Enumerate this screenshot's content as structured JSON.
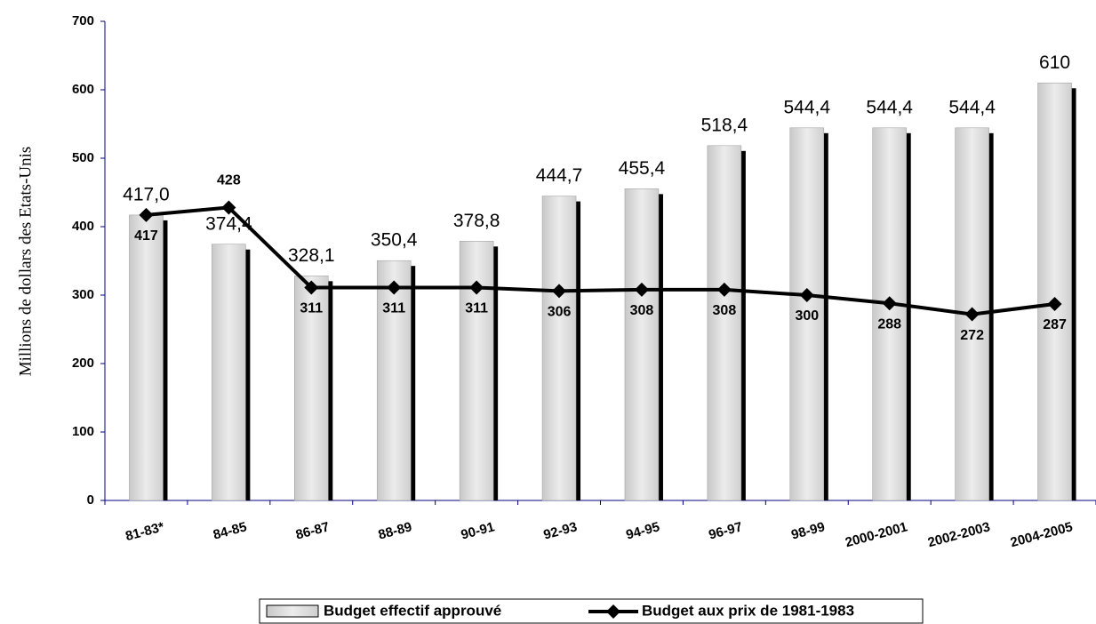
{
  "chart_data": {
    "type": "combo",
    "y_label": "Millions de dollars des Etats-Unis",
    "categories": [
      "81-83*",
      "84-85",
      "86-87",
      "88-89",
      "90-91",
      "92-93",
      "94-95",
      "96-97",
      "98-99",
      "2000-2001",
      "2002-2003",
      "2004-2005"
    ],
    "series": [
      {
        "name": "Budget effectif approuvé",
        "kind": "bar",
        "color": "#d9d9d9",
        "values": [
          417.0,
          374.4,
          328.1,
          350.4,
          378.8,
          444.7,
          455.4,
          518.4,
          544.4,
          544.4,
          544.4,
          610
        ],
        "value_labels": [
          "417,0",
          "374,4",
          "328,1",
          "350,4",
          "378,8",
          "444,7",
          "455,4",
          "518,4",
          "544,4",
          "544,4",
          "544,4",
          "610"
        ]
      },
      {
        "name": "Budget aux prix de 1981-1983",
        "kind": "line",
        "color": "#000000",
        "values": [
          417,
          428,
          311,
          311,
          311,
          306,
          308,
          308,
          300,
          288,
          272,
          287
        ]
      }
    ],
    "ylim": [
      0,
      700
    ],
    "yticks": [
      0,
      100,
      200,
      300,
      400,
      500,
      600,
      700
    ]
  }
}
